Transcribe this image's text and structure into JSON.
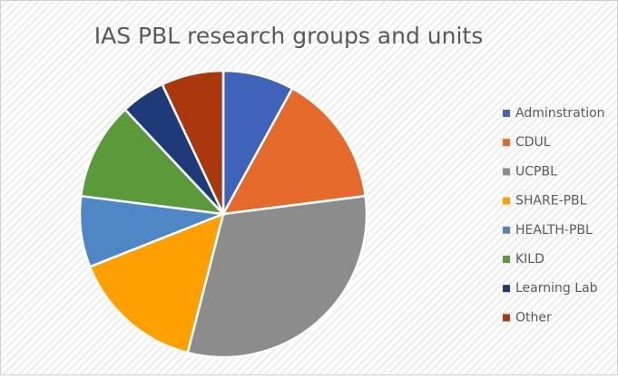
{
  "chart_data": {
    "type": "pie",
    "title": "IAS PBL research groups and units",
    "categories": [
      "Adminstration",
      "CDUL",
      "UCPBL",
      "SHARE-PBL",
      "HEALTH-PBL",
      "KILD",
      "Learning Lab",
      "Other"
    ],
    "values": [
      8,
      15,
      31,
      15,
      8,
      11,
      5,
      7
    ],
    "colors": [
      "#3f63b8",
      "#e4692a",
      "#8c8c8c",
      "#ffa000",
      "#4f86c6",
      "#5a9a3a",
      "#1f3a78",
      "#a9380f"
    ],
    "legend": "right"
  }
}
